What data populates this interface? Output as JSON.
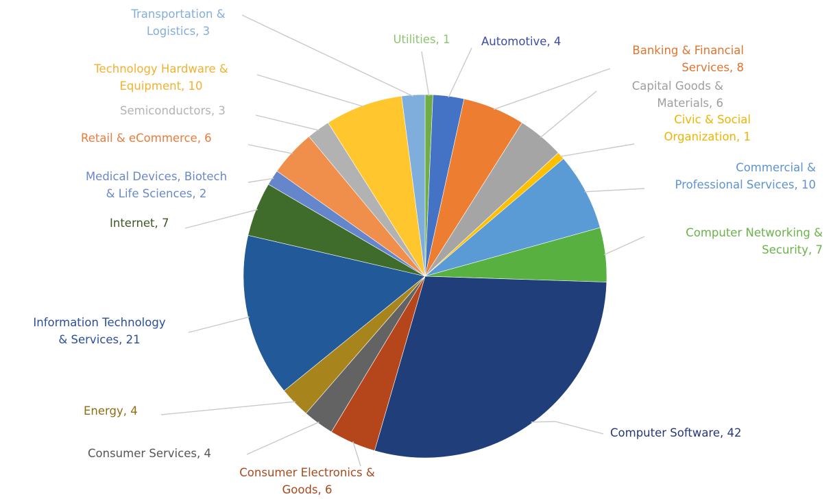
{
  "chart_data": {
    "type": "pie",
    "title": "",
    "legend": "none",
    "slices": [
      {
        "name": "Utilities",
        "label": "Utilities, 1",
        "value": 1,
        "color": "#70AD47",
        "label_color": "#8DC370",
        "label_lines": [
          "Utilities, 1"
        ]
      },
      {
        "name": "Automotive",
        "label": "Automotive, 4",
        "value": 4,
        "color": "#4472C4",
        "label_color": "#3B4BA8",
        "label_lines": [
          "Automotive, 4"
        ]
      },
      {
        "name": "Banking & Financial Services",
        "label": "Banking & Financial Services, 8",
        "value": 8,
        "color": "#ED7D31",
        "label_color": "#E0742E",
        "label_lines": [
          "Banking & Financial",
          "Services, 8"
        ]
      },
      {
        "name": "Capital Goods & Materials",
        "label": "Capital Goods & Materials, 6",
        "value": 6,
        "color": "#A5A5A5",
        "label_color": "#9E9E9E",
        "label_lines": [
          "Capital Goods &",
          "Materials, 6"
        ]
      },
      {
        "name": "Civic & Social Organization",
        "label": "Civic & Social Organization, 1",
        "value": 1,
        "color": "#FFC000",
        "label_color": "#F0B400",
        "label_lines": [
          "Civic & Social",
          "Organization, 1"
        ]
      },
      {
        "name": "Commercial & Professional Services",
        "label": "Commercial & Professional Services, 10",
        "value": 10,
        "color": "#5B9BD5",
        "label_color": "#5D93CF",
        "label_lines": [
          "Commercial &",
          "Professional Services, 10"
        ]
      },
      {
        "name": "Computer Networking & Security",
        "label": "Computer Networking & Security, 7",
        "value": 7,
        "color": "#58B040",
        "label_color": "#69B34A",
        "label_lines": [
          "Computer Networking &",
          "Security, 7"
        ]
      },
      {
        "name": "Computer Software",
        "label": "Computer Software, 42",
        "value": 42,
        "color": "#203F7A",
        "label_color": "#26377A",
        "label_lines": [
          "Computer Software, 42"
        ]
      },
      {
        "name": "Consumer Electronics & Goods",
        "label": "Consumer Electronics & Goods, 6",
        "value": 6,
        "color": "#B5461C",
        "label_color": "#A84A1E",
        "label_lines": [
          "Consumer Electronics &",
          "Goods, 6"
        ]
      },
      {
        "name": "Consumer Services",
        "label": "Consumer Services, 4",
        "value": 4,
        "color": "#636363",
        "label_color": "#555555",
        "label_lines": [
          "Consumer Services, 4"
        ]
      },
      {
        "name": "Energy",
        "label": "Energy, 4",
        "value": 4,
        "color": "#A7841C",
        "label_color": "#8E6D14",
        "label_lines": [
          "Energy, 4"
        ]
      },
      {
        "name": "Information Technology & Services",
        "label": "Information Technology & Services, 21",
        "value": 21,
        "color": "#225A99",
        "label_color": "#2B4F97",
        "label_lines": [
          "Information Technology",
          "& Services, 21"
        ]
      },
      {
        "name": "Internet",
        "label": "Internet, 7",
        "value": 7,
        "color": "#3F6B2B",
        "label_color": "#3E5624",
        "label_lines": [
          "Internet, 7"
        ]
      },
      {
        "name": "Medical Devices, Biotech & Life Sciences",
        "label": "Medical Devices, Biotech & Life Sciences, 2",
        "value": 2,
        "color": "#6686CC",
        "label_color": "#6A88C8",
        "label_lines": [
          "Medical Devices, Biotech",
          "& Life Sciences, 2"
        ]
      },
      {
        "name": "Retail & eCommerce",
        "label": "Retail & eCommerce, 6",
        "value": 6,
        "color": "#F08E4C",
        "label_color": "#EA7B3A",
        "label_lines": [
          "Retail & eCommerce, 6"
        ]
      },
      {
        "name": "Semiconductors",
        "label": "Semiconductors, 3",
        "value": 3,
        "color": "#B2B2B2",
        "label_color": "#B3B3B3",
        "label_lines": [
          "Semiconductors, 3"
        ]
      },
      {
        "name": "Technology Hardware & Equipment",
        "label": "Technology Hardware & Equipment, 10",
        "value": 10,
        "color": "#FFC62E",
        "label_color": "#F2B12E",
        "label_lines": [
          "Technology Hardware &",
          "Equipment, 10"
        ]
      },
      {
        "name": "Transportation & Logistics",
        "label": "Transportation & Logistics, 3",
        "value": 3,
        "color": "#7FAEDC",
        "label_color": "#82AEDB",
        "label_lines": [
          "Transportation &",
          "Logistics, 3"
        ]
      }
    ]
  }
}
